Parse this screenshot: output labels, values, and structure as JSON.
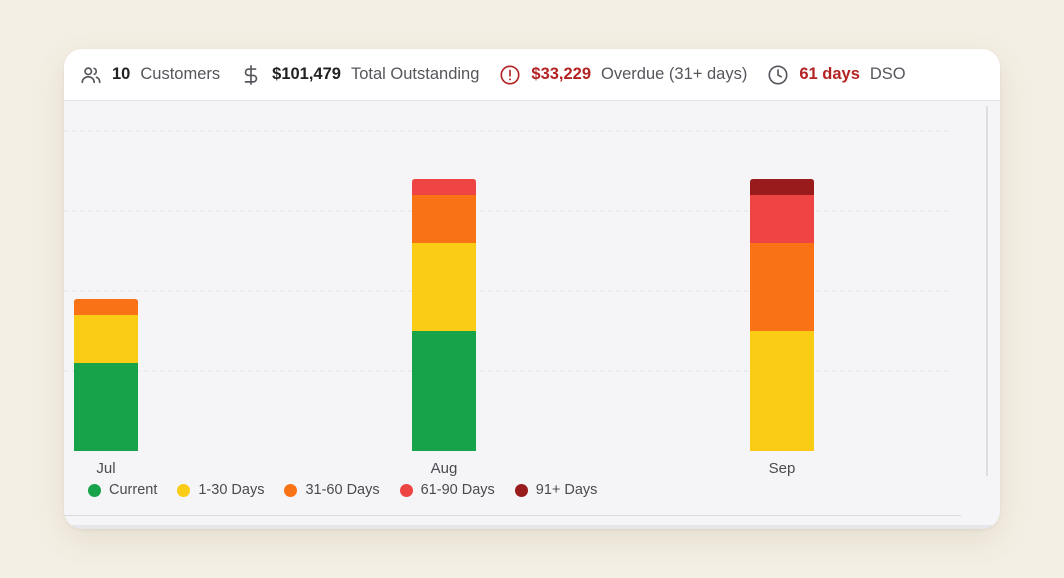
{
  "stats": {
    "customers": {
      "value": "10",
      "label": "Customers",
      "icon": "users-icon"
    },
    "outstanding": {
      "value": "$101,479",
      "label": "Total Outstanding",
      "icon": "dollar-icon"
    },
    "overdue": {
      "value": "$33,229",
      "label": "Overdue (31+ days)",
      "icon": "alert-circle-icon",
      "color": "#b42323"
    },
    "dso": {
      "value": "61 days",
      "label": "DSO",
      "icon": "clock-icon",
      "color": "#b42323"
    }
  },
  "chart_data": {
    "type": "bar",
    "stacked": true,
    "categories": [
      "Jul",
      "Aug",
      "Sep"
    ],
    "series": [
      {
        "name": "Current",
        "color": "#16a34a",
        "values": [
          11,
          15,
          0
        ]
      },
      {
        "name": "1-30 Days",
        "color": "#facc15",
        "values": [
          6,
          11,
          15
        ]
      },
      {
        "name": "31-60 Days",
        "color": "#f97316",
        "values": [
          2,
          6,
          11
        ]
      },
      {
        "name": "61-90 Days",
        "color": "#ef4444",
        "values": [
          0,
          2,
          6
        ]
      },
      {
        "name": "91+ Days",
        "color": "#991b1b",
        "values": [
          0,
          0,
          2
        ]
      }
    ],
    "ylim": [
      0,
      40
    ],
    "grid": true,
    "legend": "bottom-left"
  }
}
